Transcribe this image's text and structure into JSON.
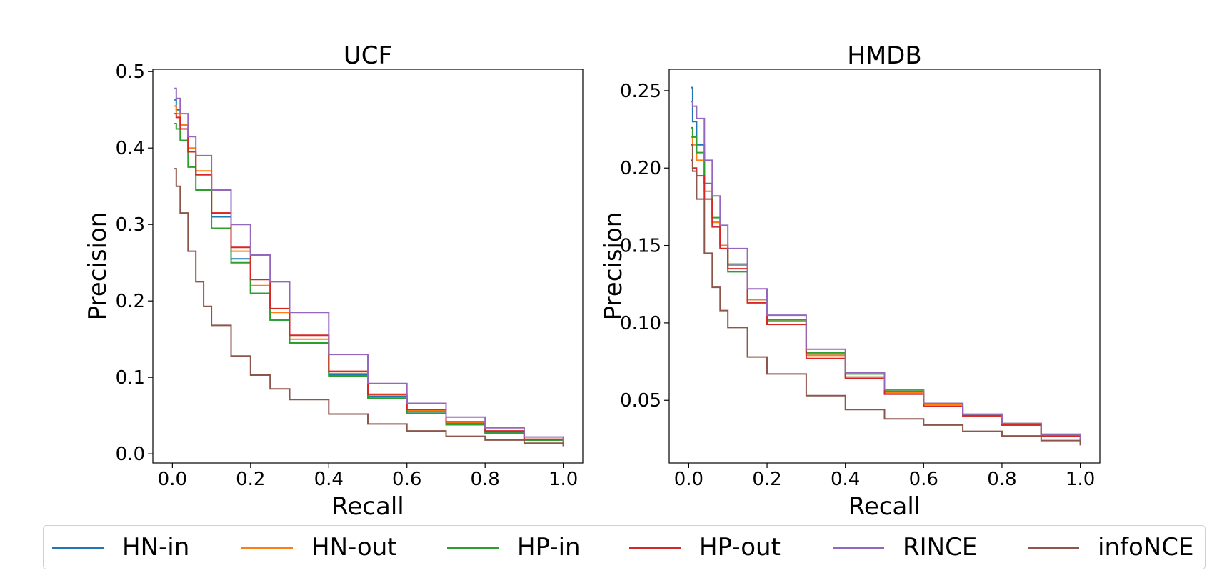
{
  "figure": {
    "description_free": true
  },
  "legend": {
    "entries": [
      {
        "label": "HN-in",
        "color": "#1f77b4"
      },
      {
        "label": "HN-out",
        "color": "#ff7f0e"
      },
      {
        "label": "HP-in",
        "color": "#2ca02c"
      },
      {
        "label": "HP-out",
        "color": "#d62728"
      },
      {
        "label": "RINCE",
        "color": "#9467bd"
      },
      {
        "label": "infoNCE",
        "color": "#8c564b"
      }
    ]
  },
  "chart_data": [
    {
      "type": "line",
      "title": "UCF",
      "xlabel": "Recall",
      "ylabel": "Precision",
      "xlim": [
        -0.05,
        1.05
      ],
      "ylim": [
        -0.012,
        0.503
      ],
      "xticks": [
        0.0,
        0.2,
        0.4,
        0.6,
        0.8,
        1.0
      ],
      "xtick_labels": [
        "0.0",
        "0.2",
        "0.4",
        "0.6",
        "0.8",
        "1.0"
      ],
      "yticks": [
        0.0,
        0.1,
        0.2,
        0.3,
        0.4,
        0.5
      ],
      "ytick_labels": [
        "0.0",
        "0.1",
        "0.2",
        "0.3",
        "0.4",
        "0.5"
      ],
      "series": [
        {
          "name": "HN-in",
          "color": "#1f77b4",
          "x": [
            0.005,
            0.01,
            0.02,
            0.04,
            0.06,
            0.1,
            0.15,
            0.2,
            0.25,
            0.3,
            0.4,
            0.5,
            0.6,
            0.7,
            0.8,
            0.9,
            1.0
          ],
          "y": [
            0.463,
            0.45,
            0.43,
            0.395,
            0.365,
            0.31,
            0.255,
            0.21,
            0.175,
            0.145,
            0.103,
            0.075,
            0.055,
            0.04,
            0.028,
            0.018,
            0.01
          ]
        },
        {
          "name": "HN-out",
          "color": "#ff7f0e",
          "x": [
            0.005,
            0.01,
            0.02,
            0.04,
            0.06,
            0.1,
            0.15,
            0.2,
            0.25,
            0.3,
            0.4,
            0.5,
            0.6,
            0.7,
            0.8,
            0.9,
            1.0
          ],
          "y": [
            0.455,
            0.445,
            0.43,
            0.4,
            0.37,
            0.315,
            0.265,
            0.22,
            0.185,
            0.15,
            0.105,
            0.077,
            0.057,
            0.041,
            0.029,
            0.019,
            0.01
          ]
        },
        {
          "name": "HP-in",
          "color": "#2ca02c",
          "x": [
            0.005,
            0.01,
            0.02,
            0.04,
            0.06,
            0.1,
            0.15,
            0.2,
            0.25,
            0.3,
            0.4,
            0.5,
            0.6,
            0.7,
            0.8,
            0.9,
            1.0
          ],
          "y": [
            0.432,
            0.425,
            0.41,
            0.375,
            0.345,
            0.295,
            0.25,
            0.21,
            0.175,
            0.145,
            0.102,
            0.073,
            0.053,
            0.038,
            0.027,
            0.018,
            0.01
          ]
        },
        {
          "name": "HP-out",
          "color": "#d62728",
          "x": [
            0.005,
            0.01,
            0.02,
            0.04,
            0.06,
            0.1,
            0.15,
            0.2,
            0.25,
            0.3,
            0.4,
            0.5,
            0.6,
            0.7,
            0.8,
            0.9,
            1.0
          ],
          "y": [
            0.445,
            0.44,
            0.425,
            0.395,
            0.365,
            0.315,
            0.27,
            0.228,
            0.19,
            0.155,
            0.108,
            0.078,
            0.058,
            0.042,
            0.03,
            0.019,
            0.01
          ]
        },
        {
          "name": "RINCE",
          "color": "#9467bd",
          "x": [
            0.005,
            0.01,
            0.02,
            0.04,
            0.06,
            0.1,
            0.15,
            0.2,
            0.25,
            0.3,
            0.4,
            0.5,
            0.6,
            0.7,
            0.8,
            0.9,
            1.0
          ],
          "y": [
            0.478,
            0.465,
            0.445,
            0.415,
            0.39,
            0.345,
            0.3,
            0.26,
            0.225,
            0.185,
            0.13,
            0.092,
            0.066,
            0.048,
            0.034,
            0.022,
            0.01
          ]
        },
        {
          "name": "infoNCE",
          "color": "#8c564b",
          "x": [
            0.005,
            0.01,
            0.02,
            0.04,
            0.06,
            0.08,
            0.1,
            0.15,
            0.2,
            0.25,
            0.3,
            0.4,
            0.5,
            0.6,
            0.7,
            0.8,
            0.9,
            1.0
          ],
          "y": [
            0.373,
            0.35,
            0.315,
            0.265,
            0.225,
            0.193,
            0.168,
            0.128,
            0.103,
            0.085,
            0.071,
            0.052,
            0.039,
            0.03,
            0.023,
            0.018,
            0.014,
            0.01
          ]
        }
      ]
    },
    {
      "type": "line",
      "title": "HMDB",
      "xlabel": "Recall",
      "ylabel": "Precision",
      "xlim": [
        -0.05,
        1.05
      ],
      "ylim": [
        0.0095,
        0.2638
      ],
      "xticks": [
        0.0,
        0.2,
        0.4,
        0.6,
        0.8,
        1.0
      ],
      "xtick_labels": [
        "0.0",
        "0.2",
        "0.4",
        "0.6",
        "0.8",
        "1.0"
      ],
      "yticks": [
        0.05,
        0.1,
        0.15,
        0.2,
        0.25
      ],
      "ytick_labels": [
        "0.05",
        "0.10",
        "0.15",
        "0.20",
        "0.25"
      ],
      "series": [
        {
          "name": "HN-in",
          "color": "#1f77b4",
          "x": [
            0.005,
            0.01,
            0.02,
            0.04,
            0.06,
            0.08,
            0.1,
            0.15,
            0.2,
            0.3,
            0.4,
            0.5,
            0.6,
            0.7,
            0.8,
            0.9,
            1.0
          ],
          "y": [
            0.252,
            0.23,
            0.215,
            0.19,
            0.165,
            0.15,
            0.138,
            0.115,
            0.102,
            0.08,
            0.065,
            0.054,
            0.046,
            0.04,
            0.034,
            0.028,
            0.021
          ]
        },
        {
          "name": "HN-out",
          "color": "#ff7f0e",
          "x": [
            0.005,
            0.01,
            0.02,
            0.04,
            0.06,
            0.08,
            0.1,
            0.15,
            0.2,
            0.3,
            0.4,
            0.5,
            0.6,
            0.7,
            0.8,
            0.9,
            1.0
          ],
          "y": [
            0.22,
            0.215,
            0.205,
            0.185,
            0.165,
            0.15,
            0.137,
            0.115,
            0.101,
            0.079,
            0.065,
            0.055,
            0.047,
            0.04,
            0.034,
            0.028,
            0.021
          ]
        },
        {
          "name": "HP-in",
          "color": "#2ca02c",
          "x": [
            0.005,
            0.01,
            0.02,
            0.04,
            0.06,
            0.08,
            0.1,
            0.15,
            0.2,
            0.3,
            0.4,
            0.5,
            0.6,
            0.7,
            0.8,
            0.9,
            1.0
          ],
          "y": [
            0.226,
            0.22,
            0.21,
            0.19,
            0.168,
            0.148,
            0.133,
            0.113,
            0.102,
            0.081,
            0.067,
            0.056,
            0.048,
            0.041,
            0.035,
            0.028,
            0.021
          ]
        },
        {
          "name": "HP-out",
          "color": "#d62728",
          "x": [
            0.005,
            0.01,
            0.02,
            0.04,
            0.06,
            0.08,
            0.1,
            0.15,
            0.2,
            0.3,
            0.4,
            0.5,
            0.6,
            0.7,
            0.8,
            0.9,
            1.0
          ],
          "y": [
            0.205,
            0.2,
            0.195,
            0.18,
            0.162,
            0.148,
            0.135,
            0.113,
            0.099,
            0.077,
            0.064,
            0.054,
            0.046,
            0.04,
            0.034,
            0.027,
            0.021
          ]
        },
        {
          "name": "RINCE",
          "color": "#9467bd",
          "x": [
            0.005,
            0.01,
            0.02,
            0.04,
            0.06,
            0.08,
            0.1,
            0.15,
            0.2,
            0.3,
            0.4,
            0.5,
            0.6,
            0.7,
            0.8,
            0.9,
            1.0
          ],
          "y": [
            0.243,
            0.24,
            0.232,
            0.205,
            0.182,
            0.163,
            0.148,
            0.122,
            0.105,
            0.083,
            0.068,
            0.057,
            0.048,
            0.041,
            0.035,
            0.028,
            0.021
          ]
        },
        {
          "name": "infoNCE",
          "color": "#8c564b",
          "x": [
            0.005,
            0.01,
            0.02,
            0.04,
            0.06,
            0.08,
            0.1,
            0.15,
            0.2,
            0.3,
            0.4,
            0.5,
            0.6,
            0.7,
            0.8,
            0.9,
            1.0
          ],
          "y": [
            0.215,
            0.198,
            0.18,
            0.145,
            0.123,
            0.108,
            0.097,
            0.078,
            0.067,
            0.053,
            0.044,
            0.038,
            0.034,
            0.03,
            0.027,
            0.024,
            0.021
          ]
        }
      ]
    }
  ]
}
